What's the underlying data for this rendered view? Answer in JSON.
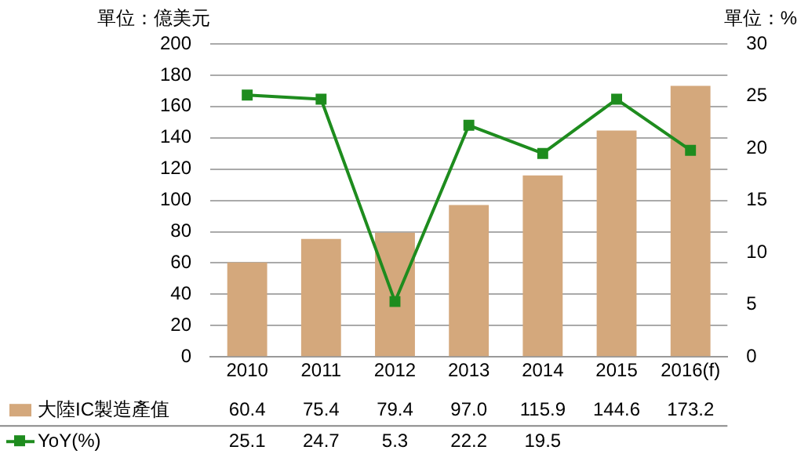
{
  "chart_data": {
    "type": "bar",
    "ylabel": "單位：億美元",
    "y2label": "單位：%",
    "categories": [
      "2010",
      "2011",
      "2012",
      "2013",
      "2014",
      "2015",
      "2016(f)"
    ],
    "series": [
      {
        "name": "大陸IC製造產值",
        "color": "#d4a87c",
        "values": [
          60.4,
          75.4,
          79.4,
          97.0,
          115.9,
          144.6,
          173.2
        ],
        "value_labels": [
          "60.4",
          "75.4",
          "79.4",
          "97.0",
          "115.9",
          "144.6",
          "173.2"
        ]
      },
      {
        "name": "YoY(%)",
        "type": "line",
        "axis": "y2",
        "color": "#1e8c1e",
        "marker": "square",
        "values": [
          25.1,
          24.7,
          5.3,
          22.2,
          19.5,
          24.7,
          19.8
        ],
        "value_labels": [
          "25.1",
          "24.7",
          "5.3",
          "22.2",
          "19.5",
          null,
          null
        ]
      }
    ],
    "ylim": [
      0,
      200
    ],
    "yticks": [
      0,
      20,
      40,
      60,
      80,
      100,
      120,
      140,
      160,
      180,
      200
    ],
    "y2lim": [
      0,
      30
    ],
    "y2ticks": [
      0,
      5,
      10,
      15,
      20,
      25,
      30
    ],
    "grid": "y",
    "legend": "bottom"
  }
}
